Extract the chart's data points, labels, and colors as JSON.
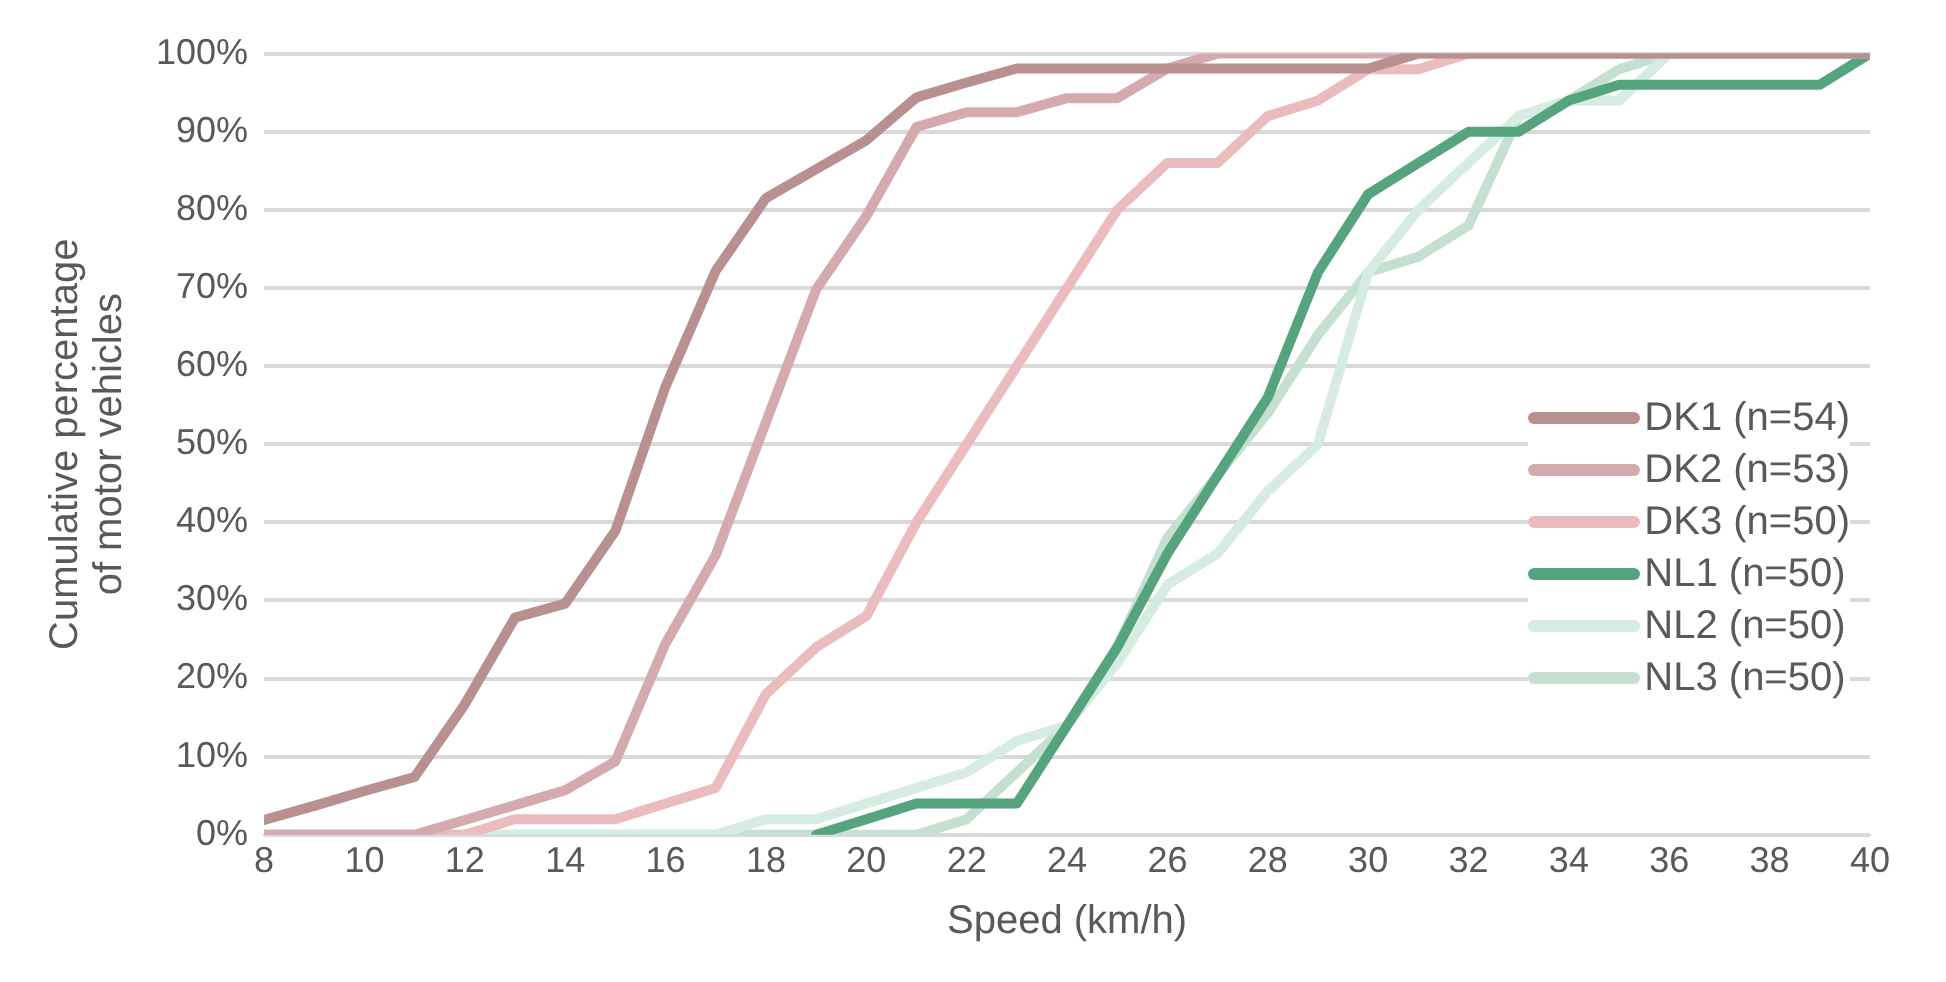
{
  "chart_data": {
    "type": "line",
    "xlabel": "Speed (km/h)",
    "ylabel": "Cumulative percentage of motor vehicles",
    "x": [
      8,
      9,
      10,
      11,
      12,
      13,
      14,
      15,
      16,
      17,
      18,
      19,
      20,
      21,
      22,
      23,
      24,
      25,
      26,
      27,
      28,
      29,
      30,
      31,
      32,
      33,
      34,
      35,
      36,
      37,
      38,
      39,
      40
    ],
    "series": [
      {
        "name": "DK1 (n=54)",
        "color": "#b89090",
        "values": [
          1.9,
          3.7,
          5.6,
          7.4,
          16.7,
          27.8,
          29.6,
          38.9,
          57.4,
          72.2,
          81.5,
          85.2,
          88.9,
          94.4,
          96.3,
          98.1,
          98.1,
          98.1,
          98.1,
          98.1,
          98.1,
          98.1,
          98.1,
          100,
          100,
          100,
          100,
          100,
          100,
          100,
          100,
          100,
          100
        ]
      },
      {
        "name": "DK2 (n=53)",
        "color": "#d4aaae",
        "values": [
          0,
          0,
          0,
          0,
          1.9,
          3.8,
          5.7,
          9.4,
          24.5,
          35.8,
          52.8,
          69.8,
          79.2,
          90.6,
          92.5,
          92.5,
          94.3,
          94.3,
          98.1,
          100,
          100,
          100,
          100,
          100,
          100,
          100,
          100,
          100,
          100,
          100,
          100,
          100,
          100
        ]
      },
      {
        "name": "DK3 (n=50)",
        "color": "#ebbcbe",
        "values": [
          0,
          0,
          0,
          0,
          0,
          2,
          2,
          2,
          4,
          6,
          18,
          24,
          28,
          40,
          50,
          60,
          70,
          80,
          86,
          86,
          92,
          94,
          98,
          98,
          100,
          100,
          100,
          100,
          100,
          100,
          100,
          100,
          100
        ]
      },
      {
        "name": "NL1 (n=50)",
        "color": "#56a47e",
        "values": [
          null,
          null,
          null,
          null,
          null,
          null,
          null,
          null,
          null,
          null,
          null,
          0,
          2,
          4,
          4,
          4,
          14,
          24,
          36,
          46,
          56,
          72,
          82,
          86,
          90,
          90,
          94,
          96,
          96,
          96,
          96,
          96,
          100
        ]
      },
      {
        "name": "NL2 (n=50)",
        "color": "#d6ebe1",
        "values": [
          0,
          0,
          0,
          0,
          0,
          0,
          0,
          0,
          0,
          0,
          2,
          2,
          4,
          6,
          8,
          12,
          14,
          22,
          32,
          36,
          44,
          50,
          72,
          80,
          86,
          92,
          94,
          94,
          100,
          100,
          100,
          100,
          100
        ]
      },
      {
        "name": "NL3 (n=50)",
        "color": "#c5e0d1",
        "values": [
          0,
          0,
          0,
          0,
          0,
          0,
          0,
          0,
          0,
          0,
          0,
          0,
          0,
          0,
          2,
          8,
          14,
          24,
          38,
          46,
          54,
          64,
          72,
          74,
          78,
          92,
          94,
          98,
          100,
          100,
          100,
          100,
          100
        ]
      }
    ],
    "xlim": [
      8,
      40
    ],
    "xticks": [
      8,
      10,
      12,
      14,
      16,
      18,
      20,
      22,
      24,
      26,
      28,
      30,
      32,
      34,
      36,
      38,
      40
    ],
    "ylim": [
      0,
      100
    ],
    "yticks": [
      {
        "value": 0,
        "label": "0%"
      },
      {
        "value": 10,
        "label": "10%"
      },
      {
        "value": 20,
        "label": "20%"
      },
      {
        "value": 30,
        "label": "30%"
      },
      {
        "value": 40,
        "label": "40%"
      },
      {
        "value": 50,
        "label": "50%"
      },
      {
        "value": 60,
        "label": "60%"
      },
      {
        "value": 70,
        "label": "70%"
      },
      {
        "value": 80,
        "label": "80%"
      },
      {
        "value": 90,
        "label": "90%"
      },
      {
        "value": 100,
        "label": "100%"
      }
    ],
    "grid": "y",
    "legend": "right",
    "marker": "none",
    "line_style": "solid"
  }
}
